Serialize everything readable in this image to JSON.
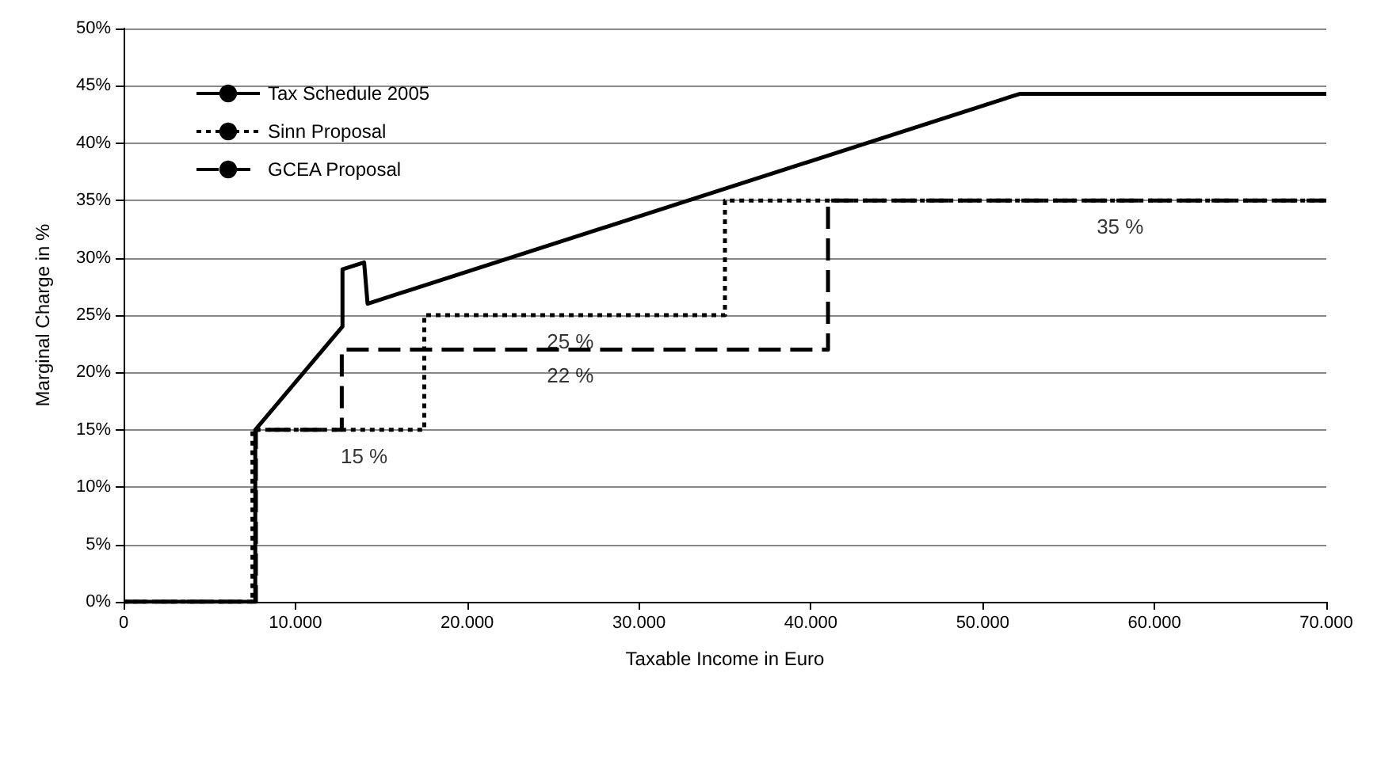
{
  "chart_data": {
    "type": "line",
    "xlabel": "Taxable Income in Euro",
    "ylabel": "Marginal Charge in %",
    "xlim": [
      0,
      70000
    ],
    "ylim": [
      0,
      50
    ],
    "xticks": [
      0,
      {
        "value": 10000,
        "label": "10.000"
      },
      {
        "value": 20000,
        "label": "20.000"
      },
      {
        "value": 30000,
        "label": "30.000"
      },
      {
        "value": 40000,
        "label": "40.000"
      },
      {
        "value": 50000,
        "label": "50.000"
      },
      {
        "value": 60000,
        "label": "60.000"
      },
      {
        "value": 70000,
        "label": "70.000"
      }
    ],
    "yticks": [
      {
        "value": 0,
        "label": "0%"
      },
      {
        "value": 5,
        "label": "5%"
      },
      {
        "value": 10,
        "label": "10%"
      },
      {
        "value": 15,
        "label": "15%"
      },
      {
        "value": 20,
        "label": "20%"
      },
      {
        "value": 25,
        "label": "25%"
      },
      {
        "value": 30,
        "label": "30%"
      },
      {
        "value": 35,
        "label": "35%"
      },
      {
        "value": 40,
        "label": "40%"
      },
      {
        "value": 45,
        "label": "45%"
      },
      {
        "value": 50,
        "label": "50%"
      }
    ],
    "grid": "y",
    "legend": "top left",
    "marker": "none",
    "series": [
      {
        "name": "Tax Schedule 2005",
        "color": "#000000",
        "line_style": "solid",
        "x": [
          0,
          7664,
          7664,
          12740,
          12740,
          14000,
          14200,
          52150,
          70000
        ],
        "values": [
          0,
          0,
          15,
          24,
          29,
          29.6,
          26,
          44.3,
          44.3
        ]
      },
      {
        "name": "Sinn Proposal",
        "color": "#000000",
        "line_style": "dotted",
        "x": [
          0,
          7500,
          7500,
          17500,
          17500,
          35000,
          35000,
          70000
        ],
        "values": [
          0,
          0,
          15,
          15,
          25,
          25,
          35,
          35
        ]
      },
      {
        "name": "GCEA Proposal",
        "color": "#000000",
        "line_style": "dashed",
        "x": [
          0,
          7700,
          7700,
          12700,
          12700,
          41000,
          41000,
          70000
        ],
        "values": [
          0,
          0,
          15,
          15,
          22,
          22,
          35,
          35
        ]
      }
    ],
    "annotations": [
      {
        "text": "15 %",
        "x": 14000,
        "y": 15
      },
      {
        "text": "25 %",
        "x": 26000,
        "y": 25
      },
      {
        "text": "22 %",
        "x": 26000,
        "y": 22
      },
      {
        "text": "35 %",
        "x": 58000,
        "y": 35
      }
    ]
  }
}
